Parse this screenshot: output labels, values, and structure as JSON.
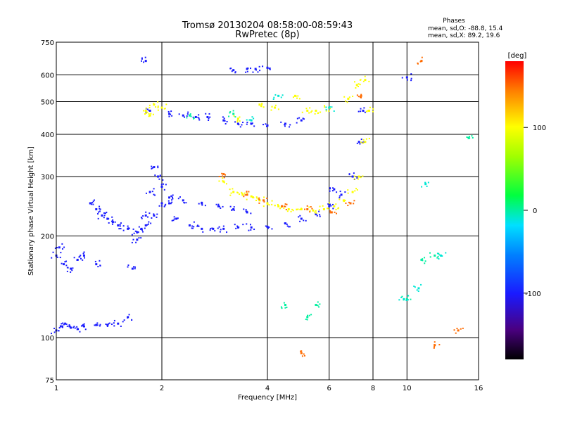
{
  "chart_data": {
    "type": "scatter",
    "title": "Tromsø 20130204 08:58:00-08:59:43",
    "subtitle": "RwPretec (8p)",
    "stats": {
      "heading": "Phases",
      "line_o": "mean, sd,O: -88.8, 15.4",
      "line_x": "mean, sd,X:  89.2, 19.6"
    },
    "xlabel": "Frequency [MHz]",
    "ylabel": "Stationary phase Virtual Height [km]",
    "xscale": "log",
    "yscale": "log",
    "xlim": [
      1,
      16
    ],
    "ylim": [
      75,
      750
    ],
    "xticks": [
      1,
      2,
      4,
      6,
      8,
      10,
      16
    ],
    "yticks": [
      75,
      100,
      200,
      300,
      400,
      500,
      600,
      750
    ],
    "grid": true,
    "colorbar": {
      "label": "[deg]",
      "range": [
        -180,
        180
      ],
      "ticks": [
        -100,
        0,
        100
      ]
    },
    "series": [
      {
        "phase": -100,
        "x": [
          1.0,
          1.03,
          1.06,
          1.1,
          1.15,
          1.2,
          1.3,
          1.4,
          1.5,
          1.6,
          1.65,
          1.7,
          1.75,
          1.8,
          1.85,
          1.9,
          1.95,
          2.0,
          2.1,
          2.2,
          2.4,
          2.6,
          2.8,
          3.0,
          3.3,
          3.6,
          4.0,
          4.5,
          5.0,
          5.5,
          6.0,
          6.5,
          7.0,
          7.3,
          7.5
        ],
        "y": [
          105,
          108,
          110,
          107,
          106,
          108,
          109,
          109,
          110,
          115,
          160,
          195,
          210,
          230,
          270,
          320,
          300,
          280,
          250,
          225,
          215,
          210,
          210,
          210,
          212,
          212,
          213,
          218,
          225,
          232,
          245,
          265,
          300,
          380,
          470
        ]
      },
      {
        "phase": -100,
        "x": [
          1.25,
          1.3,
          1.35,
          1.4,
          1.45,
          1.5,
          1.6,
          1.7,
          1.8,
          1.9,
          2.0,
          2.1,
          2.3,
          2.6,
          2.9,
          3.2,
          3.5
        ],
        "y": [
          250,
          240,
          230,
          225,
          220,
          215,
          210,
          205,
          215,
          230,
          250,
          260,
          255,
          250,
          245,
          240,
          235
        ]
      },
      {
        "phase": -100,
        "x": [
          1.85,
          2.1,
          2.3,
          2.5,
          2.7,
          3.0,
          3.3,
          3.6,
          4.0,
          4.5,
          5.0
        ],
        "y": [
          470,
          460,
          455,
          450,
          450,
          440,
          430,
          430,
          425,
          430,
          440
        ]
      },
      {
        "phase": -100,
        "x": [
          1.0,
          1.02,
          1.05,
          1.1,
          1.15,
          1.2,
          1.3
        ],
        "y": [
          175,
          185,
          165,
          160,
          170,
          175,
          165
        ]
      },
      {
        "phase": -100,
        "x": [
          1.8,
          3.2,
          3.5,
          3.7,
          4.0,
          10.0,
          6.2
        ],
        "y": [
          660,
          620,
          625,
          625,
          630,
          590,
          275
        ]
      },
      {
        "phase": 100,
        "x": [
          3.0,
          3.2,
          3.4,
          3.6,
          3.8,
          4.0,
          4.3,
          4.6,
          5.0,
          5.4,
          5.8,
          6.2,
          6.6,
          7.0,
          7.3,
          7.6,
          7.8
        ],
        "y": [
          290,
          270,
          265,
          262,
          255,
          250,
          245,
          240,
          240,
          238,
          240,
          245,
          255,
          270,
          300,
          380,
          470
        ]
      },
      {
        "phase": 100,
        "x": [
          1.8,
          1.85,
          1.9,
          2.0,
          3.3,
          3.8,
          4.2,
          5.2,
          6.0,
          6.8,
          7.2,
          7.6,
          4.8,
          5.5
        ],
        "y": [
          470,
          455,
          490,
          480,
          445,
          490,
          480,
          470,
          480,
          510,
          560,
          580,
          520,
          470
        ]
      },
      {
        "phase": 150,
        "x": [
          3.5,
          3.9,
          4.4,
          5.2,
          6.1,
          6.9,
          7.4,
          11.0,
          12.0,
          14.0,
          5.0,
          3.0
        ],
        "y": [
          265,
          255,
          245,
          240,
          235,
          250,
          520,
          660,
          95,
          105,
          90,
          305
        ]
      },
      {
        "phase": 0,
        "x": [
          11.0,
          12.0,
          10.0,
          15.0,
          4.5,
          5.5,
          5.2,
          2.4,
          3.2
        ],
        "y": [
          170,
          175,
          130,
          390,
          125,
          125,
          115,
          455,
          460
        ]
      },
      {
        "phase": -10,
        "x": [
          3.6,
          4.3,
          6.0,
          9.8,
          10.8,
          11.3,
          12.5
        ],
        "y": [
          440,
          520,
          480,
          130,
          140,
          285,
          175
        ]
      }
    ]
  }
}
